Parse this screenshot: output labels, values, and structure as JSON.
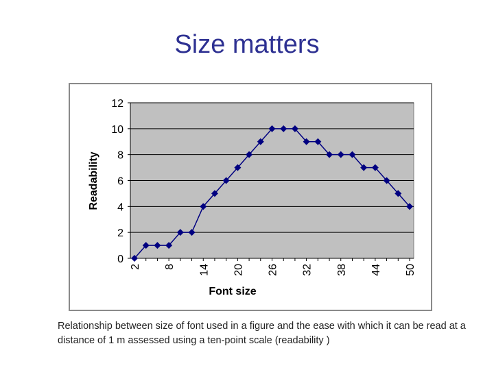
{
  "slide": {
    "title": "Size matters",
    "caption": "Relationship between size of font used in a figure and the ease with which it can be read at a distance of 1 m assessed using a ten-point scale (readability )"
  },
  "colors": {
    "title": "#2e3192",
    "plot_area": "#c0c0c0",
    "series": "#000080",
    "gridline": "#000000"
  },
  "chart_data": {
    "type": "line",
    "title": "",
    "xlabel": "Font size",
    "ylabel": "Readability",
    "x": [
      2,
      4,
      6,
      8,
      10,
      12,
      14,
      16,
      18,
      20,
      22,
      24,
      26,
      28,
      30,
      32,
      34,
      36,
      38,
      40,
      42,
      44,
      46,
      48,
      50
    ],
    "x_tick_labels": [
      "2",
      "8",
      "14",
      "20",
      "26",
      "32",
      "38",
      "44",
      "50"
    ],
    "series": [
      {
        "values": [
          0,
          1,
          1,
          1,
          2,
          2,
          4,
          5,
          6,
          7,
          8,
          9,
          10,
          10,
          10,
          9,
          9,
          8,
          8,
          8,
          7,
          7,
          6,
          5,
          4
        ]
      }
    ],
    "y_ticks": [
      0,
      2,
      4,
      6,
      8,
      10,
      12
    ],
    "ylim": [
      0,
      12
    ],
    "grid": true,
    "legend": false,
    "marker": "diamond"
  }
}
